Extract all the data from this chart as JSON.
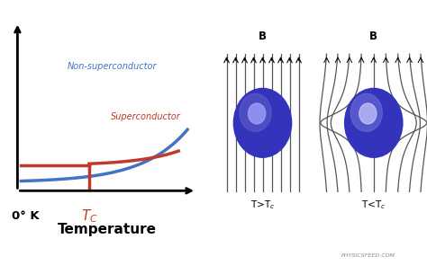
{
  "bg_color": "#ffffff",
  "graph_bg": "#ffffff",
  "blue_line_color": "#4472C4",
  "red_line_color": "#C0392B",
  "non_super_label": "Non-superconductor",
  "super_label": "Superconductor",
  "x_label": "Temperature",
  "origin_label": "0° K",
  "physicsfeed": "PHYSICSFEED.COM",
  "B_label": "B",
  "ball_color_dark": "#3333BB",
  "ball_color_mid": "#6666cc",
  "ball_color_light": "#aaaaff",
  "line_color": "#555555",
  "arrow_color": "#000000"
}
